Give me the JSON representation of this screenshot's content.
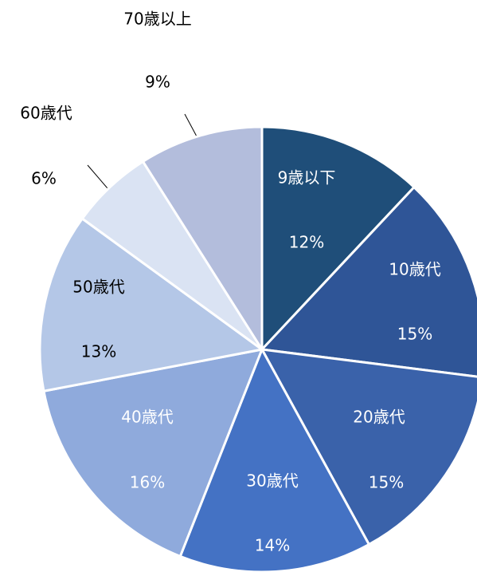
{
  "chart_data": {
    "type": "pie",
    "categories": [
      "9歳以下",
      "10歳代",
      "20歳代",
      "30歳代",
      "40歳代",
      "50歳代",
      "60歳代",
      "70歳以上"
    ],
    "values": [
      12,
      15,
      15,
      14,
      16,
      13,
      6,
      9
    ],
    "value_labels": [
      "12%",
      "15%",
      "15%",
      "14%",
      "16%",
      "13%",
      "6%",
      "9%"
    ],
    "colors": [
      "#1f4e79",
      "#2f5597",
      "#3a62aa",
      "#4472c4",
      "#8faadc",
      "#b4c7e7",
      "#dae3f3",
      "#b3bddc"
    ]
  }
}
